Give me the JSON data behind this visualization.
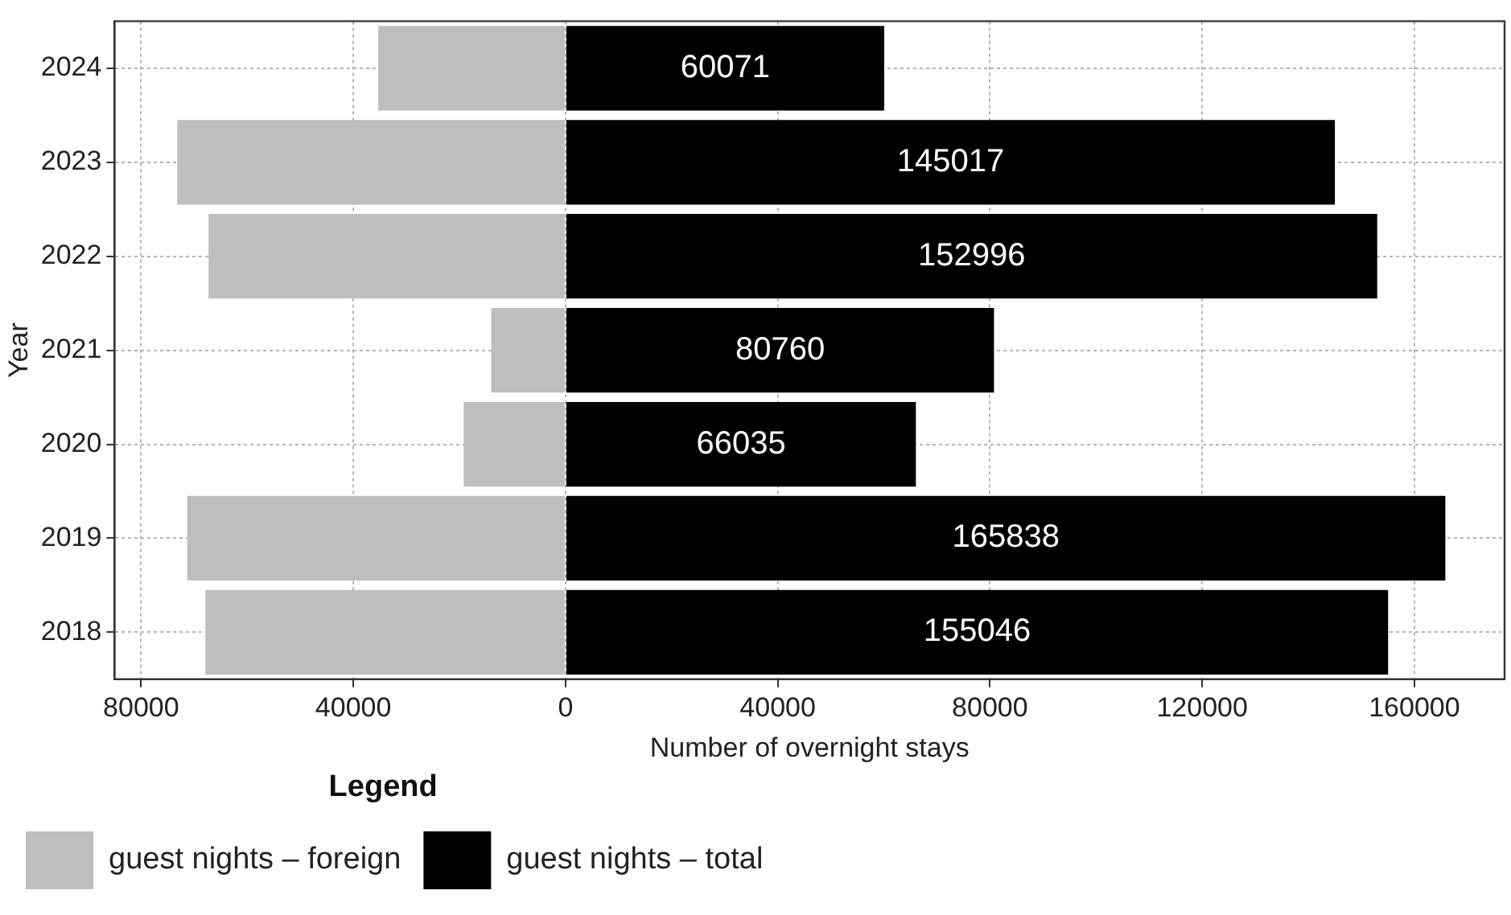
{
  "chart_data": {
    "type": "bar",
    "orientation": "horizontal",
    "stacked": true,
    "xlabel": "Number of overnight stays",
    "ylabel": "Year",
    "legend_title": "Legend",
    "legend": "bottom",
    "grid": true,
    "categories": [
      "2024",
      "2023",
      "2022",
      "2021",
      "2020",
      "2019",
      "2018"
    ],
    "xlim": [
      -85000,
      177000
    ],
    "xticks": [
      {
        "value": -80000,
        "label": "80000"
      },
      {
        "value": -40000,
        "label": "40000"
      },
      0,
      40000,
      80000,
      120000,
      160000
    ],
    "series": [
      {
        "name": "guest nights – foreign",
        "color": "#bebebe",
        "values": [
          -35300,
          -73200,
          -67300,
          -14000,
          -19200,
          -71300,
          -67900
        ]
      },
      {
        "name": "guest nights – total",
        "color": "#000000",
        "values": [
          60071,
          145017,
          152996,
          80760,
          66035,
          165838,
          155046
        ],
        "value_labels": [
          "60071",
          "145017",
          "152996",
          "80760",
          "66035",
          "165838",
          "155046"
        ]
      }
    ]
  }
}
